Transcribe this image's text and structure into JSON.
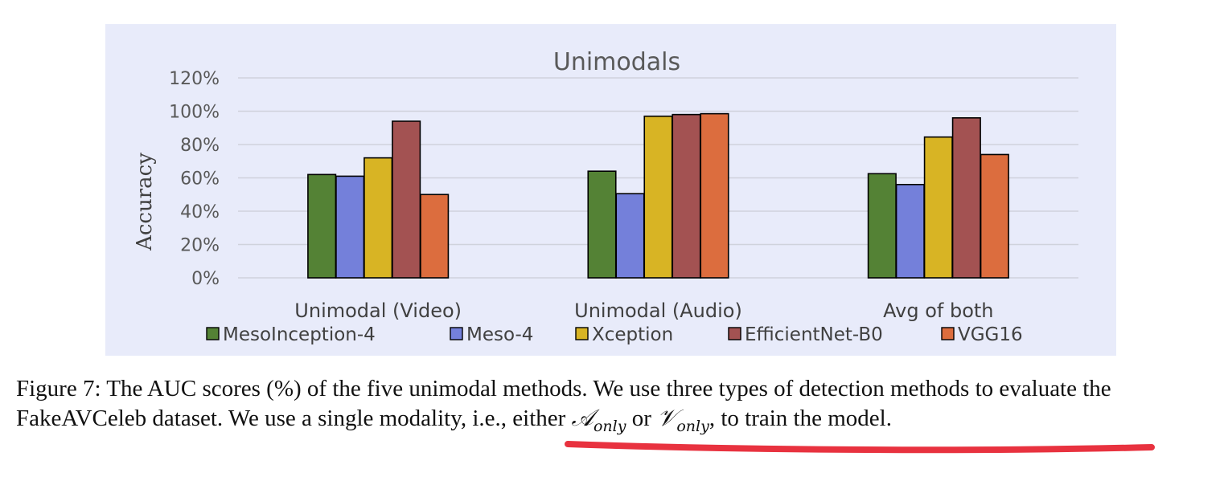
{
  "chart_data": {
    "type": "bar",
    "title": "Unimodals",
    "ylabel": "Accuracy",
    "xlabel": "",
    "ylim": [
      0,
      120
    ],
    "yticks": [
      "0%",
      "20%",
      "40%",
      "60%",
      "80%",
      "100%",
      "120%"
    ],
    "grid": true,
    "legend_position": "bottom",
    "categories": [
      "Unimodal (Video)",
      "Unimodal (Audio)",
      "Avg of both"
    ],
    "series": [
      {
        "name": "MesoInception-4",
        "color": "#548235",
        "values": [
          62,
          64,
          62.5
        ]
      },
      {
        "name": "Meso-4",
        "color": "#7480da",
        "values": [
          61,
          50.5,
          56
        ]
      },
      {
        "name": "Xception",
        "color": "#d8b424",
        "values": [
          72,
          97,
          84.5
        ]
      },
      {
        "name": "EfficientNet-B0",
        "color": "#a35252",
        "values": [
          94,
          98,
          96
        ]
      },
      {
        "name": "VGG16",
        "color": "#dc6d3e",
        "values": [
          50,
          98.5,
          74
        ]
      }
    ]
  },
  "caption": {
    "prefix": "Figure 7: The AUC scores (%) of the five unimodal methods. We use three types of detection methods to evaluate the FakeAVCeleb dataset. We use ",
    "highlighted": "a single modality, i.e., either ",
    "math_a": "𝒜",
    "math_a_sub": "only",
    "or": " or ",
    "math_v": "𝒱",
    "math_v_sub": "only",
    "highlighted_end": ", to train",
    "suffix": " the model."
  },
  "annotation": {
    "underline_color": "#e8323f"
  }
}
